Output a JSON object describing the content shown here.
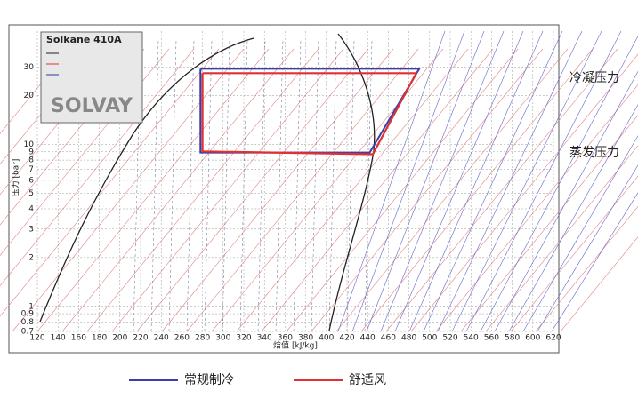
{
  "chart_data": {
    "type": "line",
    "title": "Solkane 410A",
    "brand": "SOLVAY",
    "x_label": "焓值 [kJ/kg]",
    "y_label": "压力 [bar]",
    "y_log": true,
    "grid": true,
    "xlim": [
      120,
      620
    ],
    "xticks": [
      120,
      140,
      160,
      180,
      200,
      220,
      240,
      260,
      280,
      300,
      320,
      340,
      360,
      380,
      400,
      420,
      440,
      460,
      480,
      500,
      520,
      540,
      560,
      580,
      600,
      620
    ],
    "ylim": [
      0.7,
      50
    ],
    "yticks": [
      0.7,
      0.8,
      0.9,
      1,
      2,
      3,
      4,
      5,
      6,
      7,
      8,
      9,
      10,
      20,
      30
    ],
    "series": [
      {
        "name": "常规制冷",
        "color": "#3a3fa8",
        "x": [
          278,
          490,
          442,
          278,
          278
        ],
        "values": [
          29.3,
          29.3,
          8.9,
          8.9,
          29.3
        ]
      },
      {
        "name": "舒适风",
        "color": "#e03030",
        "x": [
          280,
          487,
          445,
          280,
          280
        ],
        "values": [
          27.5,
          27.5,
          8.7,
          9.05,
          27.5
        ]
      }
    ],
    "annotations": [
      "冷凝压力",
      "蒸发压力"
    ]
  }
}
